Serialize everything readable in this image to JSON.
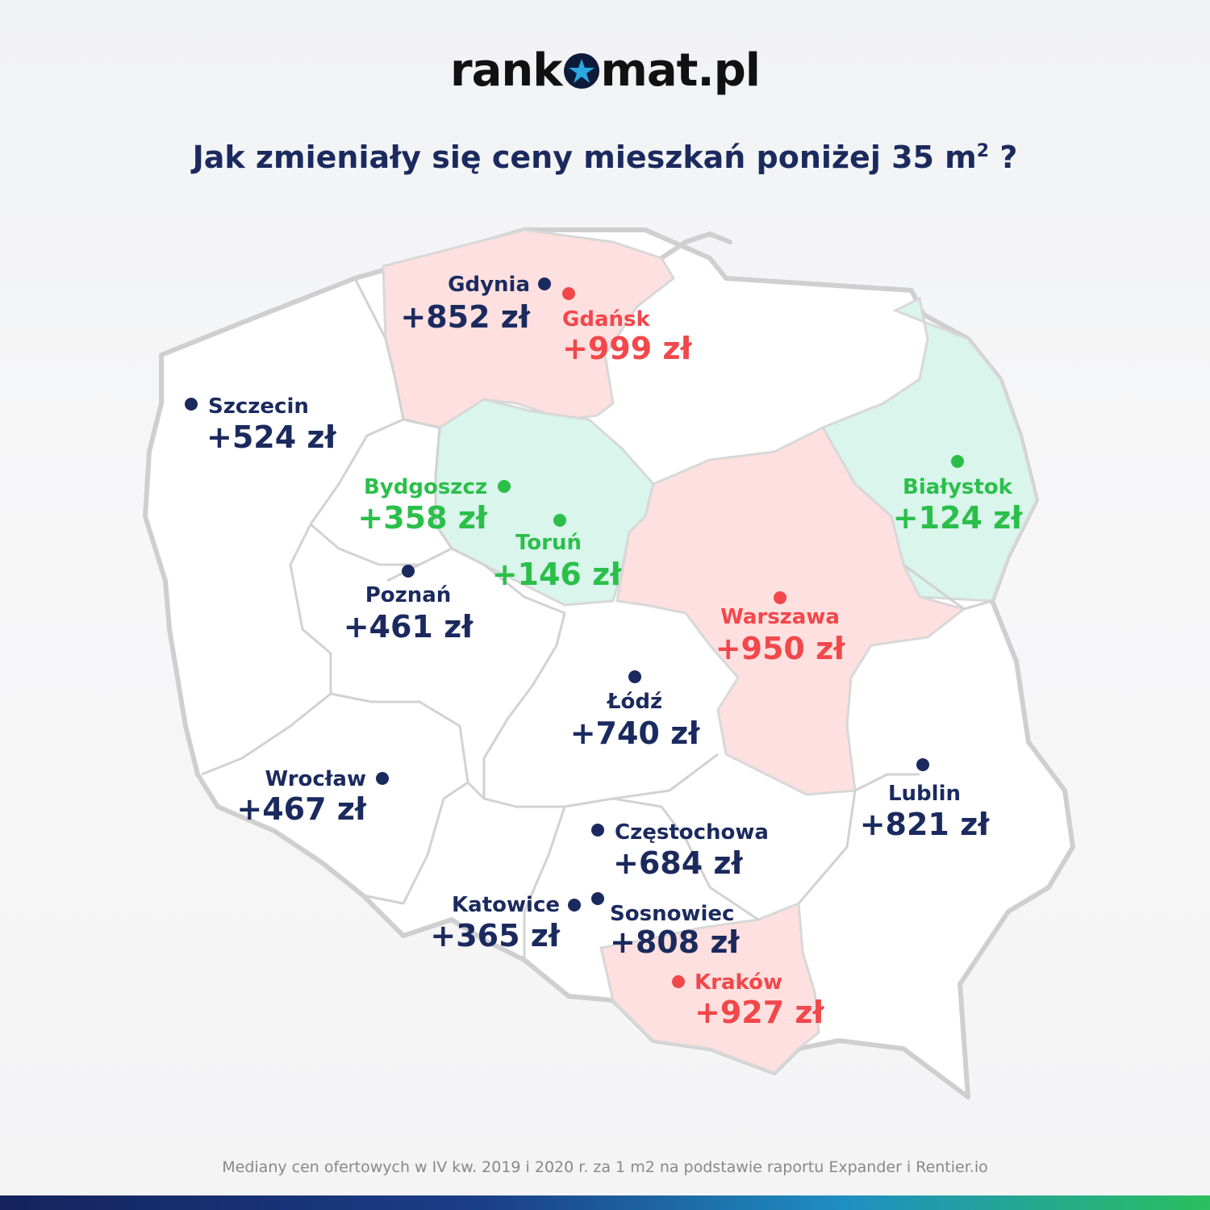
{
  "brand": {
    "logo_left": "rank",
    "logo_right": "mat.pl"
  },
  "headline": {
    "text": "Jak zmieniały się ceny mieszkań poniżej 35 m",
    "sup": "2",
    "end": "?"
  },
  "footnote": "Mediany cen ofertowych w IV kw. 2019 i 2020 r. za 1 m2 na podstawie raportu Expander i Rentier.io",
  "colors": {
    "navy": "#1b2a5e",
    "red": "#f2474b",
    "green": "#2bbf4a",
    "region_red": "#fde0df",
    "region_green": "#d9f5ec",
    "border": "#cfcfcf"
  },
  "cities": [
    {
      "id": "gdynia",
      "name": "Gdynia",
      "value": "+852 zł",
      "color": "navy"
    },
    {
      "id": "gdansk",
      "name": "Gdańsk",
      "value": "+999 zł",
      "color": "red"
    },
    {
      "id": "szczecin",
      "name": "Szczecin",
      "value": "+524 zł",
      "color": "navy"
    },
    {
      "id": "bydgoszcz",
      "name": "Bydgoszcz",
      "value": "+358 zł",
      "color": "green"
    },
    {
      "id": "torun",
      "name": "Toruń",
      "value": "+146 zł",
      "color": "green"
    },
    {
      "id": "bialystok",
      "name": "Białystok",
      "value": "+124 zł",
      "color": "green"
    },
    {
      "id": "poznan",
      "name": "Poznań",
      "value": "+461 zł",
      "color": "navy"
    },
    {
      "id": "warszawa",
      "name": "Warszawa",
      "value": "+950 zł",
      "color": "red"
    },
    {
      "id": "lodz",
      "name": "Łódź",
      "value": "+740 zł",
      "color": "navy"
    },
    {
      "id": "wroclaw",
      "name": "Wrocław",
      "value": "+467 zł",
      "color": "navy"
    },
    {
      "id": "lublin",
      "name": "Lublin",
      "value": "+821 zł",
      "color": "navy"
    },
    {
      "id": "czestochowa",
      "name": "Częstochowa",
      "value": "+684 zł",
      "color": "navy"
    },
    {
      "id": "katowice",
      "name": "Katowice",
      "value": "+365 zł",
      "color": "navy"
    },
    {
      "id": "sosnowiec",
      "name": "Sosnowiec",
      "value": "+808 zł",
      "color": "navy"
    },
    {
      "id": "krakow",
      "name": "Kraków",
      "value": "+927 zł",
      "color": "red"
    }
  ]
}
